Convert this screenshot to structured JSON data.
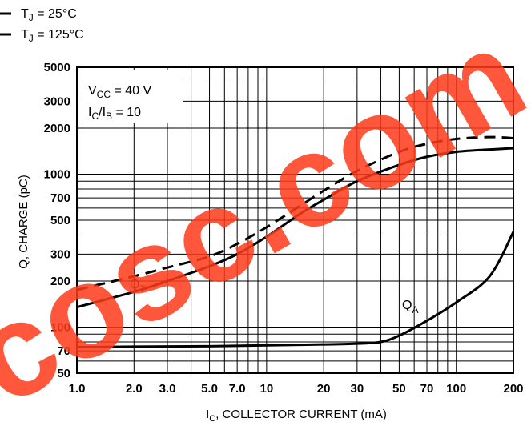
{
  "chart_data": {
    "type": "line",
    "title": "",
    "xlabel": "I",
    "xlabel_sub": "C",
    "xlabel_rest": ", COLLECTOR CURRENT (mA)",
    "ylabel": "Q, CHARGE (pC)",
    "x_scale": "log",
    "y_scale": "log",
    "xlim": [
      1.0,
      200
    ],
    "ylim": [
      50,
      5000
    ],
    "grid": true,
    "x_ticks": [
      {
        "v": 1.0,
        "label": "1.0"
      },
      {
        "v": 2.0,
        "label": "2.0"
      },
      {
        "v": 3.0,
        "label": "3.0"
      },
      {
        "v": 5.0,
        "label": "5.0"
      },
      {
        "v": 7.0,
        "label": "7.0"
      },
      {
        "v": 10,
        "label": "10"
      },
      {
        "v": 20,
        "label": "20"
      },
      {
        "v": 30,
        "label": "30"
      },
      {
        "v": 50,
        "label": "50"
      },
      {
        "v": 70,
        "label": "70"
      },
      {
        "v": 100,
        "label": "100"
      },
      {
        "v": 200,
        "label": "200"
      }
    ],
    "y_ticks": [
      {
        "v": 50,
        "label": "50"
      },
      {
        "v": 70,
        "label": "70"
      },
      {
        "v": 100,
        "label": "100"
      },
      {
        "v": 200,
        "label": "200"
      },
      {
        "v": 300,
        "label": "300"
      },
      {
        "v": 500,
        "label": "500"
      },
      {
        "v": 700,
        "label": "700"
      },
      {
        "v": 1000,
        "label": "1000"
      },
      {
        "v": 2000,
        "label": "2000"
      },
      {
        "v": 3000,
        "label": "3000"
      },
      {
        "v": 5000,
        "label": "5000"
      }
    ],
    "legend": {
      "placement": "top-left",
      "entries": [
        {
          "main": "T",
          "sub": "J",
          "rest": " = 25°C",
          "style": "solid"
        },
        {
          "main": "T",
          "sub": "J",
          "rest": " = 125°C",
          "style": "dashed"
        }
      ]
    },
    "conditions": [
      {
        "main": "V",
        "sub": "CC",
        "rest": " = 40 V"
      },
      {
        "main": "I",
        "sub": "C",
        "mid": "/I",
        "sub2": "B",
        "rest": " = 10"
      }
    ],
    "series": [
      {
        "label_main": "Q",
        "label_sub": "T",
        "style": "solid",
        "x": [
          1.0,
          2.0,
          3.0,
          5.0,
          7.0,
          10,
          15,
          20,
          30,
          50,
          70,
          100,
          150,
          200
        ],
        "y": [
          135,
          170,
          200,
          250,
          300,
          390,
          550,
          680,
          900,
          1150,
          1300,
          1400,
          1450,
          1480
        ]
      },
      {
        "label_main": "Q",
        "label_sub": "T",
        "style": "dashed",
        "x": [
          1.0,
          2.0,
          3.0,
          5.0,
          7.0,
          10,
          15,
          20,
          30,
          50,
          70,
          100,
          150,
          200
        ],
        "y": [
          175,
          215,
          245,
          290,
          350,
          450,
          620,
          780,
          1050,
          1400,
          1580,
          1700,
          1750,
          1720
        ]
      },
      {
        "label_main": "Q",
        "label_sub": "A",
        "style": "solid",
        "x": [
          1.0,
          2.0,
          5.0,
          10,
          20,
          30,
          40,
          50,
          70,
          100,
          150,
          200
        ],
        "y": [
          74,
          74.5,
          75,
          76,
          77,
          78,
          80,
          88,
          110,
          145,
          215,
          420
        ]
      }
    ]
  },
  "watermark": {
    "text": "cosc.com",
    "color": "#ff3b1a"
  }
}
